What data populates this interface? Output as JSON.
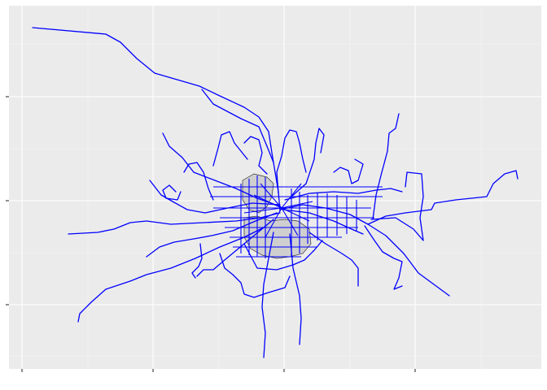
{
  "map": {
    "type": "ggplot-network-map",
    "panel_background": "#ebebeb",
    "gridline_color": "#ffffff",
    "route_color": "#0000ff",
    "polygon_fill": "#cfcfcf",
    "polygon_stroke": "#333333",
    "axis_tick_color": "#333333",
    "x_tick_labels": [
      "",
      "",
      "",
      ""
    ],
    "y_tick_labels": [
      "",
      "",
      ""
    ],
    "title": "",
    "xlabel": "",
    "ylabel": "",
    "legend": "none"
  }
}
